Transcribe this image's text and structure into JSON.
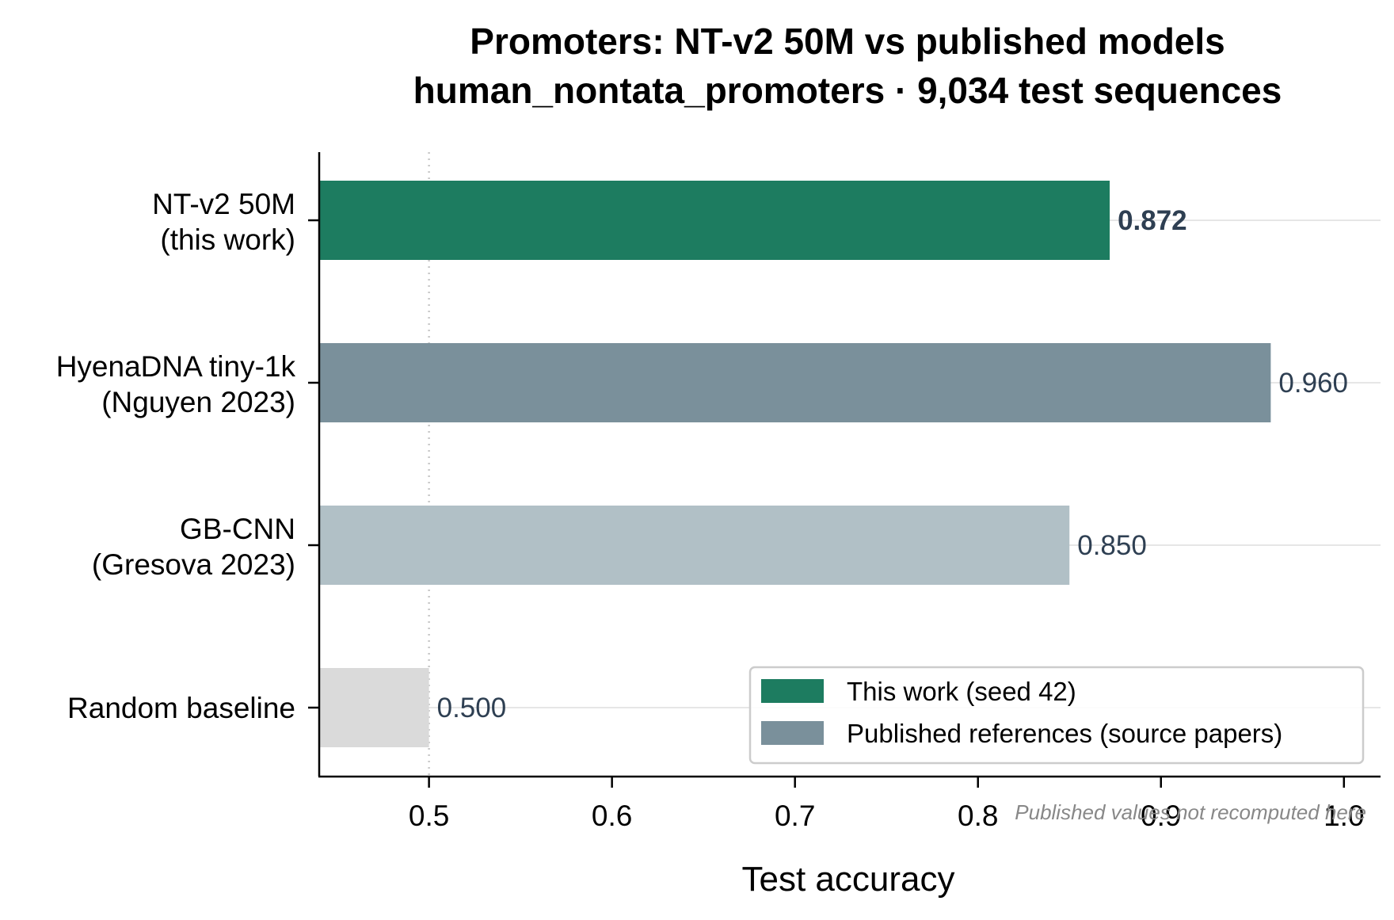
{
  "chart_data": {
    "type": "bar",
    "orientation": "horizontal",
    "title": "Promoters: NT-v2 50M vs published models",
    "subtitle": "human_nontata_promoters · 9,034 test sequences",
    "xlabel": "Test accuracy",
    "ylabel": "",
    "xlim": [
      0.44,
      1.02
    ],
    "xticks": [
      "0.5",
      "0.6",
      "0.7",
      "0.8",
      "0.9",
      "1.0"
    ],
    "grid": "horizontal gridlines at each bar",
    "reference_line": {
      "x": 0.5,
      "style": "dotted"
    },
    "categories": [
      {
        "line1": "NT-v2 50M",
        "line2": "(this work)"
      },
      {
        "line1": "HyenaDNA tiny-1k",
        "line2": "(Nguyen 2023)"
      },
      {
        "line1": "GB-CNN",
        "line2": "(Gresova 2023)"
      },
      {
        "line1": "Random baseline",
        "line2": ""
      }
    ],
    "values": [
      0.872,
      0.96,
      0.85,
      0.5
    ],
    "value_labels": [
      "0.872",
      "0.960",
      "0.850",
      "0.500"
    ],
    "bar_colors": [
      "#1d7c60",
      "#7a909b",
      "#b1c0c6",
      "#dadada"
    ],
    "legend": {
      "placement": "lower-right",
      "entries": [
        {
          "label": "This work (seed 42)",
          "color": "#1d7c60"
        },
        {
          "label": "Published references (source papers)",
          "color": "#7a909b"
        }
      ]
    },
    "footnote": "Published values not recomputed here"
  }
}
